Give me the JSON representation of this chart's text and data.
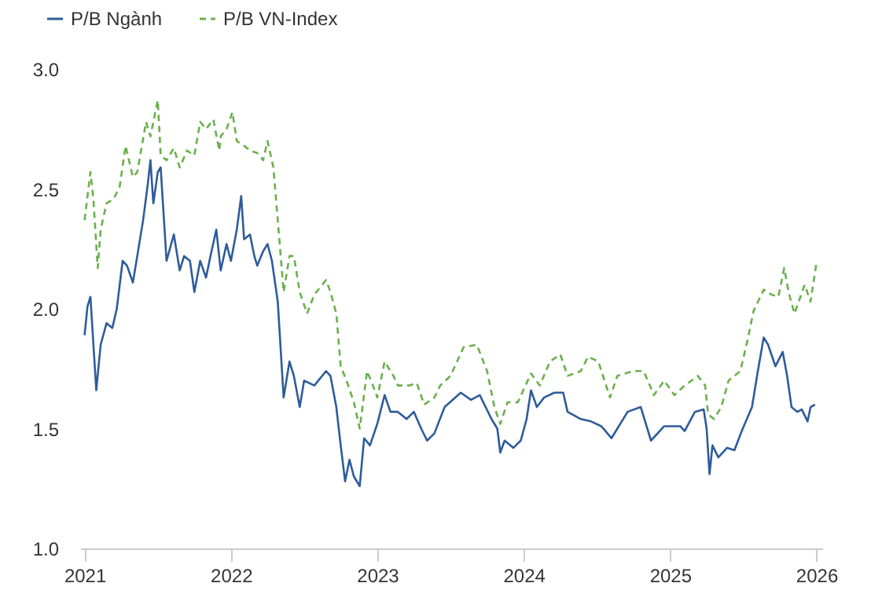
{
  "chart_data": {
    "type": "line",
    "legend": "top left",
    "grid": false,
    "marker": "none",
    "xlim": [
      2020.97,
      2026.04
    ],
    "xticks": [
      2021,
      2022,
      2023,
      2024,
      2025,
      2026
    ],
    "ylim": [
      1.0,
      3.0
    ],
    "yticks": [
      {
        "value": 1.0,
        "label": "1.0"
      },
      {
        "value": 1.5,
        "label": "1.5"
      },
      {
        "value": 2.0,
        "label": "2.0"
      },
      {
        "value": 2.5,
        "label": "2.5"
      },
      {
        "value": 3.0,
        "label": "3.0"
      }
    ],
    "series": [
      {
        "name": "P/B Ngành",
        "color": "#2e5c9a",
        "line_style": "solid",
        "x": [
          2021.0,
          2021.02,
          2021.04,
          2021.08,
          2021.11,
          2021.15,
          2021.19,
          2021.22,
          2021.26,
          2021.29,
          2021.33,
          2021.36,
          2021.4,
          2021.43,
          2021.45,
          2021.47,
          2021.5,
          2021.52,
          2021.56,
          2021.61,
          2021.65,
          2021.68,
          2021.72,
          2021.75,
          2021.79,
          2021.83,
          2021.86,
          2021.9,
          2021.93,
          2021.97,
          2022.0,
          2022.04,
          2022.07,
          2022.09,
          2022.13,
          2022.16,
          2022.18,
          2022.22,
          2022.25,
          2022.28,
          2022.32,
          2022.36,
          2022.4,
          2022.43,
          2022.47,
          2022.5,
          2022.57,
          2022.65,
          2022.68,
          2022.72,
          2022.75,
          2022.78,
          2022.81,
          2022.84,
          2022.88,
          2022.91,
          2022.95,
          2023.0,
          2023.05,
          2023.09,
          2023.14,
          2023.2,
          2023.25,
          2023.3,
          2023.34,
          2023.39,
          2023.46,
          2023.57,
          2023.64,
          2023.7,
          2023.78,
          2023.82,
          2023.84,
          2023.87,
          2023.93,
          2023.98,
          2024.02,
          2024.05,
          2024.09,
          2024.14,
          2024.21,
          2024.27,
          2024.3,
          2024.39,
          2024.46,
          2024.53,
          2024.6,
          2024.71,
          2024.8,
          2024.87,
          2024.96,
          2025.07,
          2025.1,
          2025.17,
          2025.23,
          2025.25,
          2025.27,
          2025.29,
          2025.33,
          2025.39,
          2025.44,
          2025.49,
          2025.56,
          2025.6,
          2025.64,
          2025.67,
          2025.72,
          2025.77,
          2025.8,
          2025.83,
          2025.87,
          2025.9,
          2025.94,
          2025.96,
          2025.99
        ],
        "values": [
          1.89,
          2.01,
          2.05,
          1.66,
          1.85,
          1.94,
          1.92,
          2.0,
          2.2,
          2.18,
          2.11,
          2.22,
          2.37,
          2.51,
          2.62,
          2.44,
          2.57,
          2.59,
          2.2,
          2.31,
          2.16,
          2.22,
          2.2,
          2.07,
          2.2,
          2.13,
          2.22,
          2.33,
          2.16,
          2.27,
          2.2,
          2.33,
          2.47,
          2.29,
          2.31,
          2.22,
          2.18,
          2.24,
          2.27,
          2.2,
          2.03,
          1.63,
          1.78,
          1.72,
          1.59,
          1.7,
          1.68,
          1.74,
          1.72,
          1.59,
          1.43,
          1.28,
          1.37,
          1.3,
          1.26,
          1.46,
          1.43,
          1.52,
          1.64,
          1.57,
          1.57,
          1.54,
          1.57,
          1.5,
          1.45,
          1.48,
          1.59,
          1.65,
          1.62,
          1.64,
          1.54,
          1.5,
          1.4,
          1.45,
          1.42,
          1.45,
          1.54,
          1.66,
          1.59,
          1.63,
          1.65,
          1.65,
          1.57,
          1.54,
          1.53,
          1.51,
          1.46,
          1.57,
          1.59,
          1.45,
          1.51,
          1.51,
          1.49,
          1.57,
          1.58,
          1.5,
          1.31,
          1.43,
          1.38,
          1.42,
          1.41,
          1.49,
          1.59,
          1.74,
          1.88,
          1.85,
          1.76,
          1.82,
          1.72,
          1.59,
          1.57,
          1.58,
          1.53,
          1.59,
          1.6
        ]
      },
      {
        "name": "P/B VN-Index",
        "color": "#6ab04c",
        "line_style": "dashed",
        "x": [
          2021.0,
          2021.04,
          2021.06,
          2021.09,
          2021.11,
          2021.15,
          2021.2,
          2021.24,
          2021.28,
          2021.33,
          2021.36,
          2021.42,
          2021.45,
          2021.5,
          2021.52,
          2021.56,
          2021.61,
          2021.65,
          2021.7,
          2021.75,
          2021.79,
          2021.83,
          2021.88,
          2021.92,
          2021.93,
          2021.97,
          2022.01,
          2022.04,
          2022.09,
          2022.13,
          2022.18,
          2022.22,
          2022.25,
          2022.29,
          2022.32,
          2022.36,
          2022.4,
          2022.43,
          2022.47,
          2022.52,
          2022.57,
          2022.65,
          2022.68,
          2022.72,
          2022.75,
          2022.79,
          2022.84,
          2022.88,
          2022.93,
          2022.97,
          2023.0,
          2023.05,
          2023.11,
          2023.14,
          2023.22,
          2023.27,
          2023.32,
          2023.39,
          2023.43,
          2023.5,
          2023.59,
          2023.68,
          2023.75,
          2023.8,
          2023.84,
          2023.89,
          2023.96,
          2024.05,
          2024.11,
          2024.18,
          2024.25,
          2024.3,
          2024.39,
          2024.44,
          2024.51,
          2024.59,
          2024.64,
          2024.75,
          2024.82,
          2024.89,
          2024.96,
          2025.03,
          2025.1,
          2025.19,
          2025.24,
          2025.26,
          2025.3,
          2025.35,
          2025.4,
          2025.48,
          2025.53,
          2025.57,
          2025.64,
          2025.69,
          2025.74,
          2025.78,
          2025.81,
          2025.85,
          2025.92,
          2025.96,
          2026.0
        ],
        "values": [
          2.37,
          2.57,
          2.46,
          2.17,
          2.33,
          2.44,
          2.46,
          2.51,
          2.68,
          2.55,
          2.57,
          2.78,
          2.72,
          2.87,
          2.64,
          2.62,
          2.67,
          2.59,
          2.66,
          2.64,
          2.78,
          2.75,
          2.79,
          2.66,
          2.72,
          2.75,
          2.82,
          2.7,
          2.68,
          2.66,
          2.65,
          2.62,
          2.7,
          2.59,
          2.37,
          2.07,
          2.22,
          2.22,
          2.07,
          1.98,
          2.06,
          2.12,
          2.07,
          1.98,
          1.76,
          1.7,
          1.61,
          1.5,
          1.74,
          1.68,
          1.63,
          1.78,
          1.72,
          1.68,
          1.68,
          1.69,
          1.6,
          1.63,
          1.68,
          1.72,
          1.84,
          1.85,
          1.74,
          1.59,
          1.52,
          1.61,
          1.61,
          1.73,
          1.68,
          1.78,
          1.81,
          1.72,
          1.74,
          1.8,
          1.78,
          1.63,
          1.72,
          1.74,
          1.74,
          1.64,
          1.7,
          1.64,
          1.68,
          1.72,
          1.68,
          1.56,
          1.54,
          1.59,
          1.7,
          1.74,
          1.87,
          1.99,
          2.08,
          2.06,
          2.05,
          2.17,
          2.07,
          1.98,
          2.1,
          2.03,
          2.19
        ]
      }
    ]
  }
}
